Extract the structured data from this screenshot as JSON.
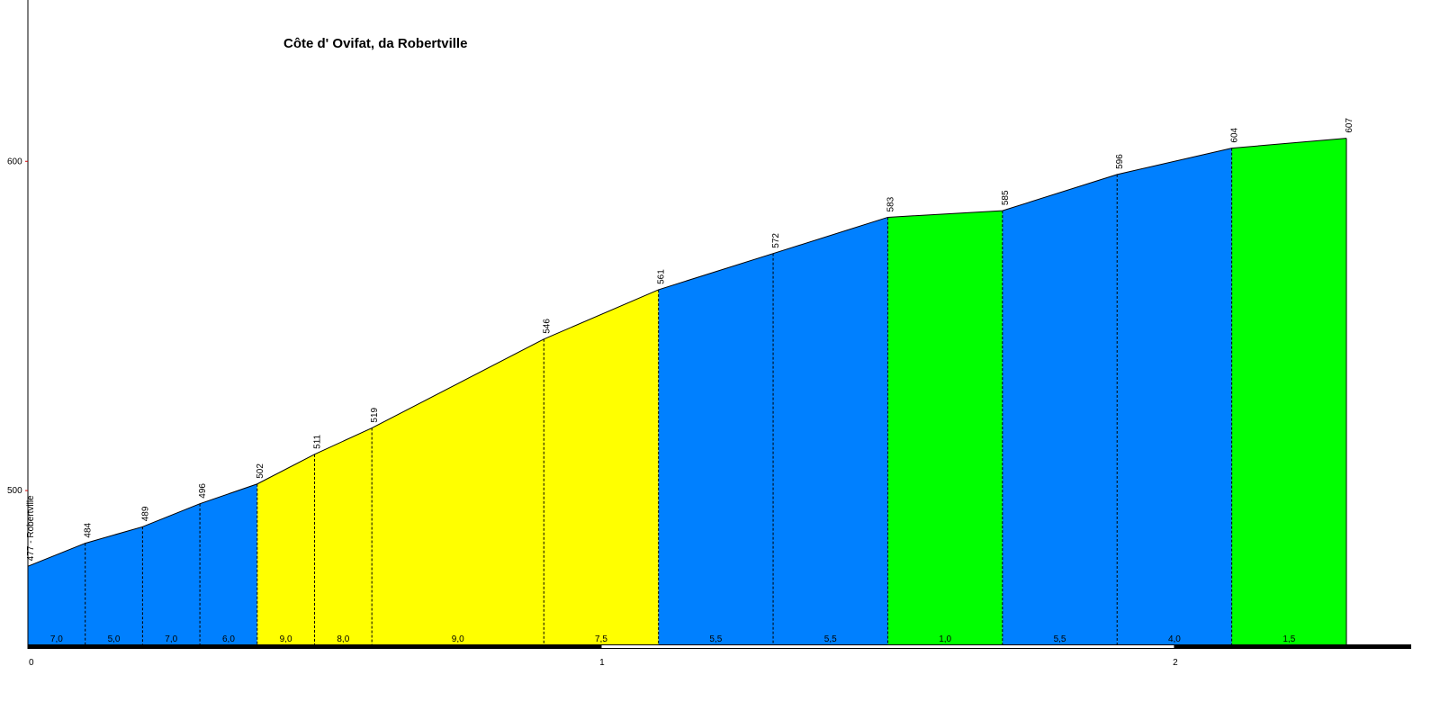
{
  "chart_data": {
    "type": "elevation-profile",
    "title": "Côte d' Ovifat, da Robertville",
    "x": [
      0,
      0.1,
      0.2,
      0.3,
      0.4,
      0.5,
      0.6,
      0.9,
      1.1,
      1.3,
      1.5,
      1.7,
      1.9,
      2.1,
      2.3
    ],
    "series": [
      {
        "values": [
          477,
          484,
          489,
          496,
          502,
          511,
          519,
          546,
          561,
          572,
          583,
          585,
          596,
          604,
          607
        ],
        "value_labels": [
          "477 - Robertville",
          "484",
          "489",
          "496",
          "502",
          "511",
          "519",
          "546",
          "561",
          "572",
          "583",
          "585",
          "596",
          "604",
          "607"
        ]
      }
    ],
    "gradients": [
      7.0,
      5.0,
      7.0,
      6.0,
      9.0,
      8.0,
      9.0,
      7.5,
      5.5,
      5.5,
      1.0,
      5.5,
      4.0,
      1.5
    ],
    "gradient_labels": [
      "7,0",
      "5,0",
      "7,0",
      "6,0",
      "9,0",
      "8,0",
      "9,0",
      "7,5",
      "5,5",
      "5,5",
      "1,0",
      "5,5",
      "4,0",
      "1,5"
    ],
    "segment_colors": [
      "#0080ff",
      "#0080ff",
      "#0080ff",
      "#0080ff",
      "#ffff00",
      "#ffff00",
      "#ffff00",
      "#ffff00",
      "#0080ff",
      "#0080ff",
      "#00ff00",
      "#0080ff",
      "#0080ff",
      "#00ff00"
    ],
    "xlim": [
      0,
      2.413
    ],
    "ylim": [
      453,
      649
    ],
    "xticks": [
      0,
      1,
      2
    ],
    "yticks": [
      500,
      600
    ]
  }
}
